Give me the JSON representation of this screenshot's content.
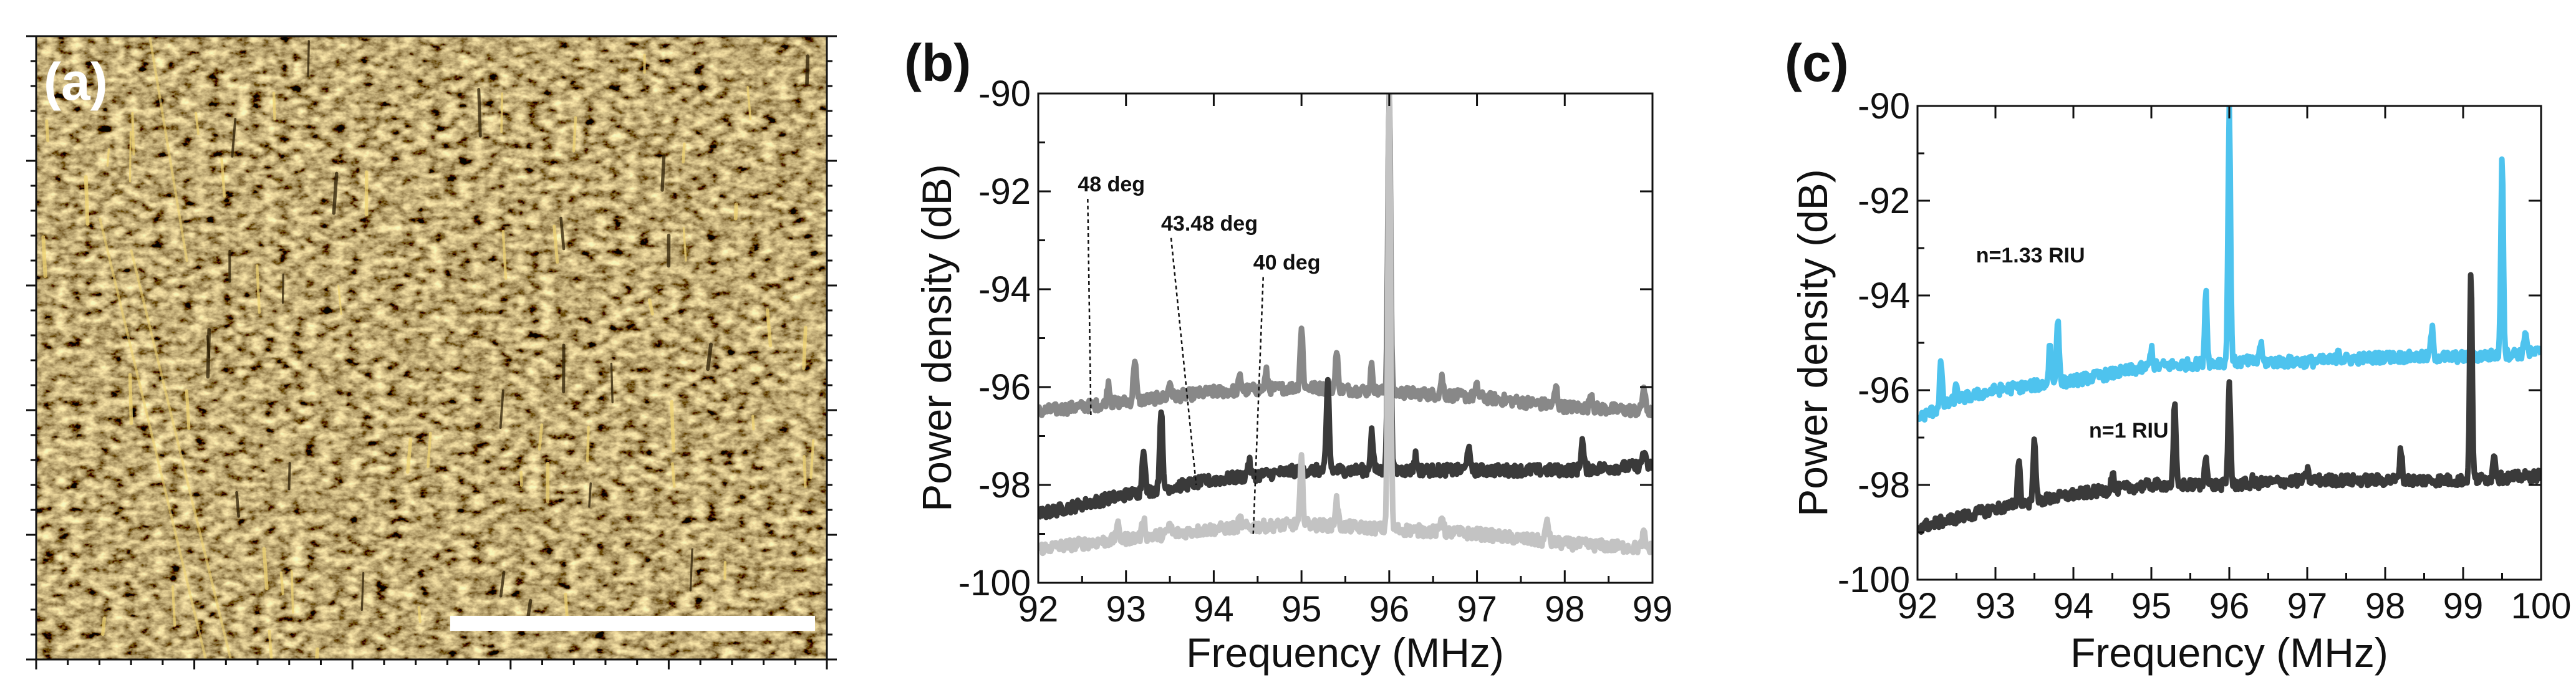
{
  "colors": {
    "afm_base": "#6b4a08",
    "afm_mid": "#a27412",
    "afm_light": "#f0d472",
    "afm_dark": "#2b1d04",
    "scale_bar": "#ffffff",
    "axis": "#111111"
  },
  "panel_a": {
    "label": "(a)",
    "content": "AFM surface topography image"
  },
  "chart_data": [
    {
      "panel": "(b)",
      "type": "line",
      "xlabel": "Frequency (MHz)",
      "ylabel": "Power density (dB)",
      "xlim": [
        92,
        99
      ],
      "ylim": [
        -100,
        -90
      ],
      "xticks": [
        92,
        93,
        94,
        95,
        96,
        97,
        98,
        99
      ],
      "yticks": [
        -90,
        -92,
        -94,
        -96,
        -98,
        -100
      ],
      "grid": false,
      "series": [
        {
          "name": "48 deg",
          "color": "#888888",
          "baseline": [
            [
              92,
              -96.5
            ],
            [
              93,
              -96.3
            ],
            [
              94,
              -96.1
            ],
            [
              95,
              -96.0
            ],
            [
              96,
              -96.1
            ],
            [
              97,
              -96.2
            ],
            [
              98,
              -96.4
            ],
            [
              99,
              -96.5
            ]
          ],
          "noise": 0.12,
          "peaks": [
            [
              92.8,
              -95.9
            ],
            [
              93.1,
              -95.4
            ],
            [
              93.5,
              -95.9
            ],
            [
              94.3,
              -95.8
            ],
            [
              94.6,
              -95.7
            ],
            [
              95.0,
              -94.8
            ],
            [
              95.4,
              -95.3
            ],
            [
              95.8,
              -95.6
            ],
            [
              96.0,
              -90
            ],
            [
              96.6,
              -95.8
            ],
            [
              97.0,
              -96.0
            ],
            [
              97.9,
              -96.0
            ],
            [
              98.3,
              -96.1
            ],
            [
              98.9,
              -96.0
            ]
          ]
        },
        {
          "name": "43.48 deg",
          "color": "#3a3a3a",
          "baseline": [
            [
              92,
              -98.6
            ],
            [
              93,
              -98.2
            ],
            [
              94,
              -97.9
            ],
            [
              95,
              -97.7
            ],
            [
              96,
              -97.7
            ],
            [
              97,
              -97.7
            ],
            [
              98,
              -97.7
            ],
            [
              99,
              -97.6
            ]
          ],
          "noise": 0.12,
          "peaks": [
            [
              93.2,
              -97.2
            ],
            [
              93.4,
              -96.4
            ],
            [
              94.4,
              -97.5
            ],
            [
              95.3,
              -95.9
            ],
            [
              95.8,
              -96.9
            ],
            [
              96.0,
              -90
            ],
            [
              96.3,
              -97.4
            ],
            [
              96.9,
              -97.2
            ],
            [
              98.2,
              -97.1
            ],
            [
              98.9,
              -97.3
            ]
          ]
        },
        {
          "name": "40 deg",
          "color": "#c3c3c3",
          "baseline": [
            [
              92,
              -99.3
            ],
            [
              93,
              -99.1
            ],
            [
              94,
              -98.9
            ],
            [
              95,
              -98.8
            ],
            [
              96,
              -98.9
            ],
            [
              97,
              -99.0
            ],
            [
              98,
              -99.2
            ],
            [
              99,
              -99.3
            ]
          ],
          "noise": 0.12,
          "peaks": [
            [
              92.9,
              -98.8
            ],
            [
              93.2,
              -98.7
            ],
            [
              93.5,
              -98.8
            ],
            [
              94.3,
              -98.7
            ],
            [
              95.0,
              -97.5
            ],
            [
              95.4,
              -98.3
            ],
            [
              96.0,
              -90
            ],
            [
              96.6,
              -98.6
            ],
            [
              97.8,
              -98.7
            ],
            [
              98.9,
              -99.0
            ]
          ]
        }
      ],
      "annotations": [
        {
          "text": "48 deg",
          "x": 92.45,
          "y": -92.0,
          "line_to": [
            92.6,
            -96.6
          ]
        },
        {
          "text": "43.48 deg",
          "x": 93.4,
          "y": -92.8,
          "line_to": [
            93.8,
            -98.0
          ]
        },
        {
          "text": "40 deg",
          "x": 94.45,
          "y": -93.6,
          "line_to": [
            94.45,
            -99.0
          ]
        }
      ]
    },
    {
      "panel": "(c)",
      "type": "line",
      "xlabel": "Frequency (MHz)",
      "ylabel": "Power density (dB)",
      "xlim": [
        92,
        100
      ],
      "ylim": [
        -100,
        -90
      ],
      "xticks": [
        92,
        93,
        94,
        95,
        96,
        97,
        98,
        99,
        100
      ],
      "yticks": [
        -90,
        -92,
        -94,
        -96,
        -98,
        -100
      ],
      "grid": false,
      "series": [
        {
          "name": "n=1.33 RIU",
          "color": "#4ec3ee",
          "baseline": [
            [
              92,
              -96.6
            ],
            [
              92.5,
              -96.2
            ],
            [
              93,
              -96.0
            ],
            [
              94,
              -95.8
            ],
            [
              95,
              -95.5
            ],
            [
              96,
              -95.4
            ],
            [
              97,
              -95.4
            ],
            [
              98,
              -95.3
            ],
            [
              99,
              -95.3
            ],
            [
              100,
              -95.2
            ]
          ],
          "noise": 0.12,
          "peaks": [
            [
              92.3,
              -95.4
            ],
            [
              92.5,
              -95.9
            ],
            [
              93.7,
              -95.0
            ],
            [
              93.8,
              -94.4
            ],
            [
              95.0,
              -95.1
            ],
            [
              95.7,
              -93.9
            ],
            [
              96.0,
              -90
            ],
            [
              96.4,
              -95.0
            ],
            [
              97.4,
              -95.1
            ],
            [
              98.6,
              -94.7
            ],
            [
              99.5,
              -91.0
            ],
            [
              99.8,
              -94.7
            ]
          ]
        },
        {
          "name": "n=1 RIU",
          "color": "#3a3a3a",
          "baseline": [
            [
              92,
              -98.9
            ],
            [
              93,
              -98.5
            ],
            [
              94,
              -98.2
            ],
            [
              95,
              -98.0
            ],
            [
              96,
              -98.0
            ],
            [
              97,
              -97.9
            ],
            [
              98,
              -97.9
            ],
            [
              99,
              -97.9
            ],
            [
              100,
              -97.8
            ]
          ],
          "noise": 0.12,
          "peaks": [
            [
              93.3,
              -97.4
            ],
            [
              93.5,
              -96.9
            ],
            [
              94.5,
              -97.7
            ],
            [
              95.3,
              -96.3
            ],
            [
              95.7,
              -97.3
            ],
            [
              96.0,
              -95.8
            ],
            [
              96.3,
              -97.9
            ],
            [
              97.0,
              -97.7
            ],
            [
              98.2,
              -97.2
            ],
            [
              99.1,
              -93.4
            ],
            [
              99.4,
              -97.3
            ]
          ]
        }
      ],
      "annotations": [
        {
          "text": "n=1.33 RIU",
          "x": 92.75,
          "y": -93.3
        },
        {
          "text": "n=1 RIU",
          "x": 94.2,
          "y": -97.0
        }
      ]
    }
  ]
}
